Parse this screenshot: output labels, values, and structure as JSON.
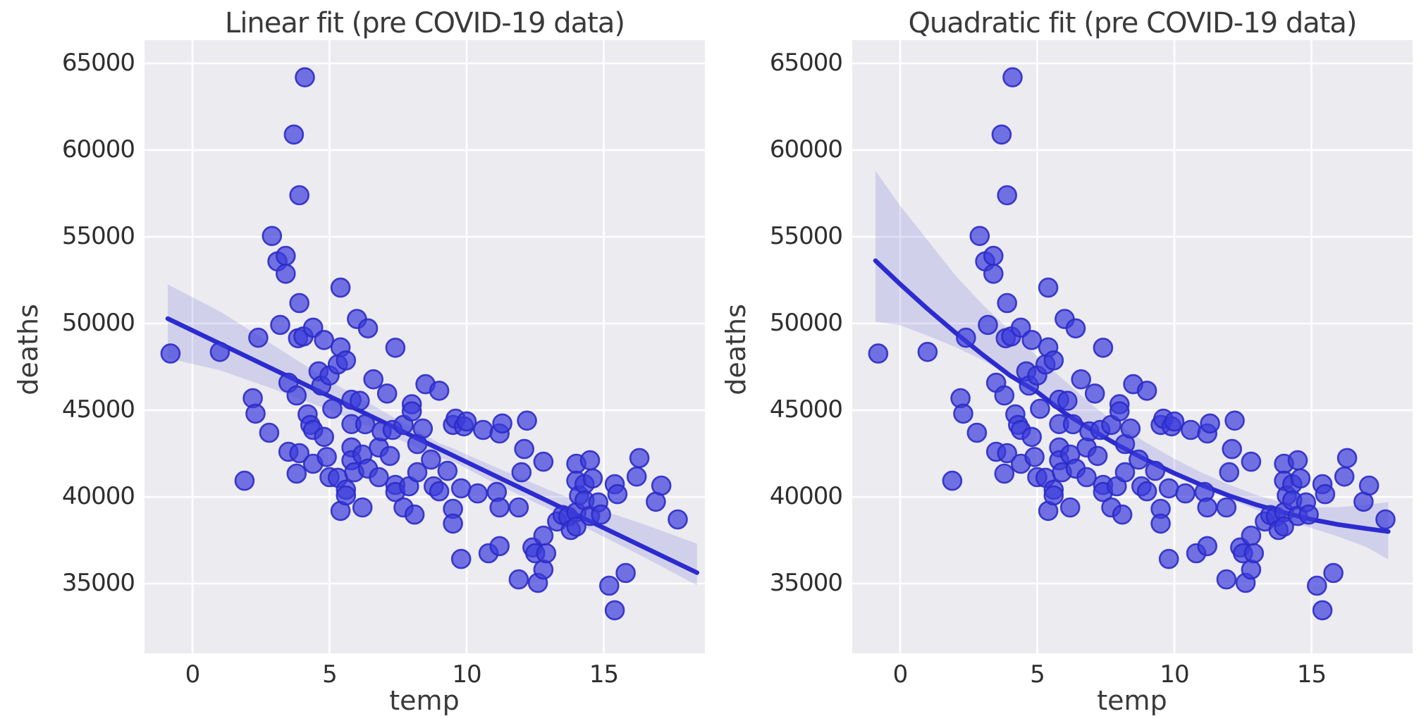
{
  "figure": {
    "background": "#ffffff",
    "plot_background": "#ecebf0",
    "grid_color": "#ffffff",
    "text_color": "#3a3a3a",
    "tick_color": "#2e2e2e"
  },
  "style": {
    "scatter_fill": "#3c3cdc",
    "scatter_edge": "#2b2bc8",
    "scatter_opacity": 0.7,
    "fit_line_color": "#2b2bd0",
    "band_color": "#7373d9",
    "band_opacity": 0.22
  },
  "chart_data": [
    {
      "type": "scatter",
      "title": "Linear fit (pre COVID-19 data)",
      "xlabel": "temp",
      "ylabel": "deaths",
      "xticks": [
        0,
        5,
        10,
        15
      ],
      "yticks": [
        65000,
        60000,
        55000,
        50000,
        45000,
        40000,
        35000
      ],
      "xlim": [
        -1.75,
        18.7
      ],
      "ylim": [
        31000,
        66350
      ],
      "grid": true,
      "legend": false,
      "fit_kind": "linear",
      "fit": [
        [
          -0.9,
          50280
        ],
        [
          18.4,
          35630
        ]
      ],
      "band": [
        [
          -0.9,
          48000,
          52250
        ],
        [
          1,
          47300,
          50700
        ],
        [
          3,
          46200,
          48700
        ],
        [
          5,
          45000,
          46700
        ],
        [
          7,
          43700,
          44900
        ],
        [
          9,
          42250,
          43100
        ],
        [
          9.5,
          42050,
          42800
        ],
        [
          11,
          40800,
          41750
        ],
        [
          13,
          39300,
          40400
        ],
        [
          15,
          37700,
          39200
        ],
        [
          16.5,
          36500,
          38400
        ],
        [
          18.4,
          34900,
          37300
        ]
      ],
      "points": [
        [
          -0.8,
          48270
        ],
        [
          1.0,
          48360
        ],
        [
          1.9,
          40930
        ],
        [
          2.2,
          45690
        ],
        [
          2.3,
          44800
        ],
        [
          2.4,
          49180
        ],
        [
          2.8,
          43700
        ],
        [
          2.9,
          55050
        ],
        [
          3.1,
          53580
        ],
        [
          3.2,
          49920
        ],
        [
          3.4,
          53900
        ],
        [
          3.4,
          52870
        ],
        [
          3.5,
          46580
        ],
        [
          3.5,
          42600
        ],
        [
          3.7,
          60900
        ],
        [
          3.8,
          45850
        ],
        [
          3.8,
          41340
        ],
        [
          3.85,
          49150
        ],
        [
          3.9,
          57400
        ],
        [
          3.9,
          51180
        ],
        [
          3.9,
          42520
        ],
        [
          4.05,
          49250
        ],
        [
          4.1,
          64200
        ],
        [
          4.2,
          44760
        ],
        [
          4.3,
          44150
        ],
        [
          4.4,
          49760
        ],
        [
          4.4,
          43860
        ],
        [
          4.4,
          41910
        ],
        [
          4.6,
          47240
        ],
        [
          4.7,
          46420
        ],
        [
          4.8,
          49050
        ],
        [
          4.8,
          43460
        ],
        [
          4.9,
          42300
        ],
        [
          5.0,
          47000
        ],
        [
          5.0,
          41140
        ],
        [
          5.1,
          45080
        ],
        [
          5.3,
          47640
        ],
        [
          5.3,
          41100
        ],
        [
          5.4,
          52070
        ],
        [
          5.4,
          48620
        ],
        [
          5.4,
          39190
        ],
        [
          5.6,
          47870
        ],
        [
          5.6,
          40410
        ],
        [
          5.6,
          40080
        ],
        [
          5.8,
          45600
        ],
        [
          5.8,
          44200
        ],
        [
          5.8,
          42850
        ],
        [
          5.8,
          42110
        ],
        [
          5.9,
          41420
        ],
        [
          6.0,
          50260
        ],
        [
          6.1,
          45540
        ],
        [
          6.2,
          42440
        ],
        [
          6.2,
          39390
        ],
        [
          6.3,
          44190
        ],
        [
          6.4,
          49720
        ],
        [
          6.4,
          41630
        ],
        [
          6.6,
          46780
        ],
        [
          6.8,
          42850
        ],
        [
          6.8,
          41140
        ],
        [
          6.9,
          43780
        ],
        [
          7.1,
          45960
        ],
        [
          7.2,
          42360
        ],
        [
          7.3,
          43860
        ],
        [
          7.4,
          48600
        ],
        [
          7.4,
          40690
        ],
        [
          7.4,
          40280
        ],
        [
          7.7,
          44150
        ],
        [
          7.7,
          39390
        ],
        [
          7.9,
          40610
        ],
        [
          8.0,
          45340
        ],
        [
          8.0,
          44930
        ],
        [
          8.1,
          38980
        ],
        [
          8.2,
          43050
        ],
        [
          8.2,
          41420
        ],
        [
          8.4,
          43940
        ],
        [
          8.5,
          46500
        ],
        [
          8.7,
          42150
        ],
        [
          8.8,
          40610
        ],
        [
          9.0,
          46120
        ],
        [
          9.0,
          40320
        ],
        [
          9.3,
          41500
        ],
        [
          9.5,
          44150
        ],
        [
          9.5,
          39310
        ],
        [
          9.5,
          38460
        ],
        [
          9.6,
          44510
        ],
        [
          9.8,
          40490
        ],
        [
          9.8,
          36420
        ],
        [
          9.9,
          44070
        ],
        [
          10.0,
          44350
        ],
        [
          10.4,
          40200
        ],
        [
          10.6,
          43860
        ],
        [
          10.8,
          36750
        ],
        [
          11.1,
          40280
        ],
        [
          11.2,
          43660
        ],
        [
          11.2,
          39390
        ],
        [
          11.2,
          37160
        ],
        [
          11.3,
          44230
        ],
        [
          11.9,
          39390
        ],
        [
          11.9,
          35240
        ],
        [
          12.0,
          41420
        ],
        [
          12.1,
          42760
        ],
        [
          12.2,
          44400
        ],
        [
          12.4,
          37080
        ],
        [
          12.5,
          36750
        ],
        [
          12.6,
          35040
        ],
        [
          12.8,
          42030
        ],
        [
          12.8,
          37760
        ],
        [
          12.8,
          35810
        ],
        [
          12.9,
          36750
        ],
        [
          13.3,
          38580
        ],
        [
          13.5,
          38950
        ],
        [
          13.7,
          38860
        ],
        [
          13.8,
          38090
        ],
        [
          14.0,
          41910
        ],
        [
          14.0,
          40930
        ],
        [
          14.0,
          39110
        ],
        [
          14.0,
          38290
        ],
        [
          14.1,
          40080
        ],
        [
          14.3,
          40730
        ],
        [
          14.3,
          39800
        ],
        [
          14.5,
          42110
        ],
        [
          14.5,
          38900
        ],
        [
          14.6,
          41060
        ],
        [
          14.8,
          39680
        ],
        [
          14.9,
          38980
        ],
        [
          15.2,
          34880
        ],
        [
          15.4,
          40730
        ],
        [
          15.4,
          33460
        ],
        [
          15.5,
          40160
        ],
        [
          15.8,
          35610
        ],
        [
          16.2,
          41170
        ],
        [
          16.3,
          42240
        ],
        [
          16.9,
          39720
        ],
        [
          17.1,
          40650
        ],
        [
          17.7,
          38700
        ]
      ]
    },
    {
      "type": "scatter",
      "title": "Quadratic fit (pre COVID-19 data)",
      "xlabel": "temp",
      "ylabel": "deaths",
      "xticks": [
        0,
        5,
        10,
        15
      ],
      "yticks": [
        65000,
        60000,
        55000,
        50000,
        45000,
        40000,
        35000
      ],
      "xlim": [
        -1.75,
        18.7
      ],
      "ylim": [
        31000,
        66350
      ],
      "grid": true,
      "legend": false,
      "fit_kind": "quadratic",
      "fit": [
        [
          -0.9,
          53620
        ],
        [
          0,
          52270
        ],
        [
          1,
          50840
        ],
        [
          2,
          49490
        ],
        [
          3,
          48210
        ],
        [
          4,
          47010
        ],
        [
          5,
          46050
        ],
        [
          6,
          44830
        ],
        [
          7,
          43850
        ],
        [
          8,
          42940
        ],
        [
          9,
          42110
        ],
        [
          10,
          41360
        ],
        [
          11,
          40680
        ],
        [
          12,
          40070
        ],
        [
          13,
          39540
        ],
        [
          14,
          39090
        ],
        [
          15,
          38700
        ],
        [
          16,
          38400
        ],
        [
          17,
          38170
        ],
        [
          17.8,
          38000
        ]
      ],
      "band": [
        [
          -0.9,
          50100,
          58800
        ],
        [
          0,
          49900,
          56800
        ],
        [
          1,
          49300,
          54800
        ],
        [
          2,
          48650,
          52800
        ],
        [
          3,
          47900,
          51100
        ],
        [
          4,
          47000,
          49600
        ],
        [
          5,
          45900,
          48100
        ],
        [
          6,
          44800,
          46700
        ],
        [
          7,
          43800,
          45300
        ],
        [
          8,
          42850,
          44100
        ],
        [
          9,
          42000,
          43100
        ],
        [
          10,
          41250,
          42200
        ],
        [
          11,
          40550,
          41400
        ],
        [
          12,
          39900,
          40700
        ],
        [
          13,
          39250,
          40100
        ],
        [
          14,
          38700,
          39650
        ],
        [
          14.5,
          38450,
          39500
        ],
        [
          15,
          38200,
          39400
        ],
        [
          16,
          37700,
          39400
        ],
        [
          17,
          37100,
          39550
        ],
        [
          17.8,
          36400,
          39700
        ]
      ],
      "points": [
        [
          -0.8,
          48270
        ],
        [
          1.0,
          48360
        ],
        [
          1.9,
          40930
        ],
        [
          2.2,
          45690
        ],
        [
          2.3,
          44800
        ],
        [
          2.4,
          49180
        ],
        [
          2.8,
          43700
        ],
        [
          2.9,
          55050
        ],
        [
          3.1,
          53580
        ],
        [
          3.2,
          49920
        ],
        [
          3.4,
          53900
        ],
        [
          3.4,
          52870
        ],
        [
          3.5,
          46580
        ],
        [
          3.5,
          42600
        ],
        [
          3.7,
          60900
        ],
        [
          3.8,
          45850
        ],
        [
          3.8,
          41340
        ],
        [
          3.85,
          49150
        ],
        [
          3.9,
          57400
        ],
        [
          3.9,
          51180
        ],
        [
          3.9,
          42520
        ],
        [
          4.05,
          49250
        ],
        [
          4.1,
          64200
        ],
        [
          4.2,
          44760
        ],
        [
          4.3,
          44150
        ],
        [
          4.4,
          49760
        ],
        [
          4.4,
          43860
        ],
        [
          4.4,
          41910
        ],
        [
          4.6,
          47240
        ],
        [
          4.7,
          46420
        ],
        [
          4.8,
          49050
        ],
        [
          4.8,
          43460
        ],
        [
          4.9,
          42300
        ],
        [
          5.0,
          47000
        ],
        [
          5.0,
          41140
        ],
        [
          5.1,
          45080
        ],
        [
          5.3,
          47640
        ],
        [
          5.3,
          41100
        ],
        [
          5.4,
          52070
        ],
        [
          5.4,
          48620
        ],
        [
          5.4,
          39190
        ],
        [
          5.6,
          47870
        ],
        [
          5.6,
          40410
        ],
        [
          5.6,
          40080
        ],
        [
          5.8,
          45600
        ],
        [
          5.8,
          44200
        ],
        [
          5.8,
          42850
        ],
        [
          5.8,
          42110
        ],
        [
          5.9,
          41420
        ],
        [
          6.0,
          50260
        ],
        [
          6.1,
          45540
        ],
        [
          6.2,
          42440
        ],
        [
          6.2,
          39390
        ],
        [
          6.3,
          44190
        ],
        [
          6.4,
          49720
        ],
        [
          6.4,
          41630
        ],
        [
          6.6,
          46780
        ],
        [
          6.8,
          42850
        ],
        [
          6.8,
          41140
        ],
        [
          6.9,
          43780
        ],
        [
          7.1,
          45960
        ],
        [
          7.2,
          42360
        ],
        [
          7.3,
          43860
        ],
        [
          7.4,
          48600
        ],
        [
          7.4,
          40690
        ],
        [
          7.4,
          40280
        ],
        [
          7.7,
          44150
        ],
        [
          7.7,
          39390
        ],
        [
          7.9,
          40610
        ],
        [
          8.0,
          45340
        ],
        [
          8.0,
          44930
        ],
        [
          8.1,
          38980
        ],
        [
          8.2,
          43050
        ],
        [
          8.2,
          41420
        ],
        [
          8.4,
          43940
        ],
        [
          8.5,
          46500
        ],
        [
          8.7,
          42150
        ],
        [
          8.8,
          40610
        ],
        [
          9.0,
          46120
        ],
        [
          9.0,
          40320
        ],
        [
          9.3,
          41500
        ],
        [
          9.5,
          44150
        ],
        [
          9.5,
          39310
        ],
        [
          9.5,
          38460
        ],
        [
          9.6,
          44510
        ],
        [
          9.8,
          40490
        ],
        [
          9.8,
          36420
        ],
        [
          9.9,
          44070
        ],
        [
          10.0,
          44350
        ],
        [
          10.4,
          40200
        ],
        [
          10.6,
          43860
        ],
        [
          10.8,
          36750
        ],
        [
          11.1,
          40280
        ],
        [
          11.2,
          43660
        ],
        [
          11.2,
          39390
        ],
        [
          11.2,
          37160
        ],
        [
          11.3,
          44230
        ],
        [
          11.9,
          39390
        ],
        [
          11.9,
          35240
        ],
        [
          12.0,
          41420
        ],
        [
          12.1,
          42760
        ],
        [
          12.2,
          44400
        ],
        [
          12.4,
          37080
        ],
        [
          12.5,
          36750
        ],
        [
          12.6,
          35040
        ],
        [
          12.8,
          42030
        ],
        [
          12.8,
          37760
        ],
        [
          12.8,
          35810
        ],
        [
          12.9,
          36750
        ],
        [
          13.3,
          38580
        ],
        [
          13.5,
          38950
        ],
        [
          13.7,
          38860
        ],
        [
          13.8,
          38090
        ],
        [
          14.0,
          41910
        ],
        [
          14.0,
          40930
        ],
        [
          14.0,
          39110
        ],
        [
          14.0,
          38290
        ],
        [
          14.1,
          40080
        ],
        [
          14.3,
          40730
        ],
        [
          14.3,
          39800
        ],
        [
          14.5,
          42110
        ],
        [
          14.5,
          38900
        ],
        [
          14.6,
          41060
        ],
        [
          14.8,
          39680
        ],
        [
          14.9,
          38980
        ],
        [
          15.2,
          34880
        ],
        [
          15.4,
          40730
        ],
        [
          15.4,
          33460
        ],
        [
          15.5,
          40160
        ],
        [
          15.8,
          35610
        ],
        [
          16.2,
          41170
        ],
        [
          16.3,
          42240
        ],
        [
          16.9,
          39720
        ],
        [
          17.1,
          40650
        ],
        [
          17.7,
          38700
        ]
      ]
    }
  ]
}
